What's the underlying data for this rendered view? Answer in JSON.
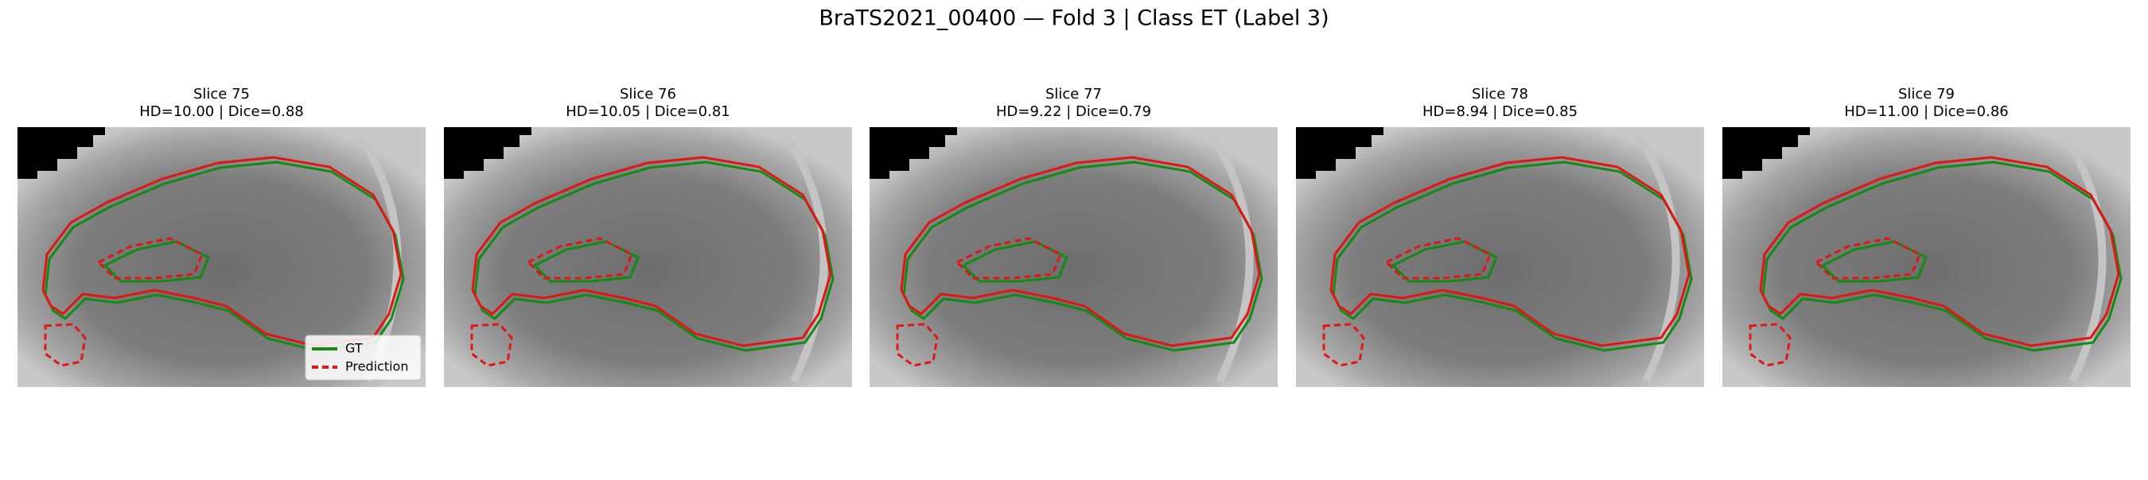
{
  "title": "BraTS2021_00400 — Fold 3 | Class ET (Label 3)",
  "panels": [
    {
      "title": "Slice 75",
      "subtitle": "HD=10.00 | Dice=0.88"
    },
    {
      "title": "Slice 76",
      "subtitle": "HD=10.05 | Dice=0.81"
    },
    {
      "title": "Slice 77",
      "subtitle": "HD=9.22 | Dice=0.79"
    },
    {
      "title": "Slice 78",
      "subtitle": "HD=8.94 | Dice=0.85"
    },
    {
      "title": "Slice 79",
      "subtitle": "HD=11.00 | Dice=0.86"
    }
  ],
  "legend": [
    "GT",
    "Prediction"
  ]
}
